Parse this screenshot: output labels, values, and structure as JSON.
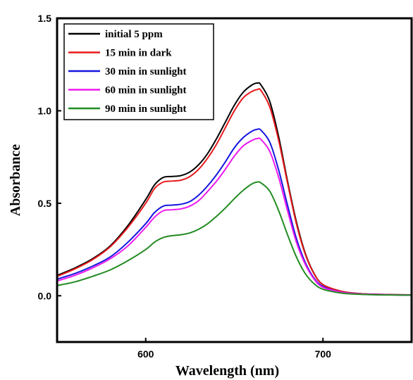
{
  "chart_data": {
    "type": "line",
    "xlabel": "Wavelength (nm)",
    "ylabel": "Absorbance",
    "xlim": [
      550,
      750
    ],
    "ylim": [
      -0.25,
      1.5
    ],
    "x_ticks": [
      600,
      700
    ],
    "x_tick_labels": [
      "600",
      "700"
    ],
    "y_ticks": [
      0.0,
      0.5,
      1.0,
      1.5
    ],
    "y_tick_labels": [
      "0.0",
      "0.5",
      "1.0",
      "1.5"
    ],
    "grid": false,
    "legend_position": "top-left",
    "x": [
      550,
      560,
      570,
      580,
      590,
      600,
      605,
      610,
      615,
      620,
      625,
      630,
      635,
      640,
      645,
      650,
      655,
      660,
      663,
      665,
      670,
      675,
      680,
      685,
      690,
      695,
      700,
      710,
      720,
      730,
      740,
      750
    ],
    "series": [
      {
        "name": "initial 5 ppm",
        "color": "#000000",
        "values": [
          0.11,
          0.15,
          0.2,
          0.27,
          0.38,
          0.52,
          0.6,
          0.64,
          0.645,
          0.65,
          0.67,
          0.71,
          0.77,
          0.85,
          0.94,
          1.03,
          1.1,
          1.14,
          1.15,
          1.14,
          1.05,
          0.86,
          0.62,
          0.4,
          0.23,
          0.12,
          0.06,
          0.025,
          0.012,
          0.008,
          0.006,
          0.005
        ]
      },
      {
        "name": "15 min in dark",
        "color": "#e8191b",
        "values": [
          0.105,
          0.145,
          0.195,
          0.265,
          0.37,
          0.5,
          0.58,
          0.615,
          0.62,
          0.625,
          0.645,
          0.685,
          0.745,
          0.82,
          0.91,
          1.0,
          1.07,
          1.105,
          1.115,
          1.11,
          1.02,
          0.84,
          0.61,
          0.39,
          0.225,
          0.118,
          0.06,
          0.025,
          0.012,
          0.008,
          0.006,
          0.005
        ]
      },
      {
        "name": "30 min in sunlight",
        "color": "#1616e0",
        "values": [
          0.09,
          0.12,
          0.16,
          0.21,
          0.29,
          0.39,
          0.45,
          0.485,
          0.49,
          0.495,
          0.51,
          0.545,
          0.595,
          0.655,
          0.725,
          0.8,
          0.855,
          0.89,
          0.9,
          0.895,
          0.83,
          0.68,
          0.49,
          0.31,
          0.18,
          0.095,
          0.05,
          0.02,
          0.01,
          0.007,
          0.005,
          0.004
        ]
      },
      {
        "name": "60 min in sunlight",
        "color": "#ee1aee",
        "values": [
          0.08,
          0.11,
          0.15,
          0.2,
          0.27,
          0.37,
          0.425,
          0.46,
          0.465,
          0.47,
          0.485,
          0.515,
          0.565,
          0.62,
          0.685,
          0.755,
          0.81,
          0.84,
          0.85,
          0.845,
          0.78,
          0.64,
          0.46,
          0.29,
          0.17,
          0.09,
          0.045,
          0.02,
          0.01,
          0.007,
          0.005,
          0.004
        ]
      },
      {
        "name": "90 min in sunlight",
        "color": "#228b22",
        "values": [
          0.055,
          0.075,
          0.105,
          0.14,
          0.19,
          0.25,
          0.29,
          0.315,
          0.325,
          0.33,
          0.34,
          0.36,
          0.39,
          0.43,
          0.475,
          0.525,
          0.57,
          0.605,
          0.615,
          0.61,
          0.565,
          0.46,
          0.33,
          0.21,
          0.12,
          0.065,
          0.035,
          0.015,
          0.008,
          0.005,
          0.004,
          0.003
        ]
      }
    ]
  }
}
